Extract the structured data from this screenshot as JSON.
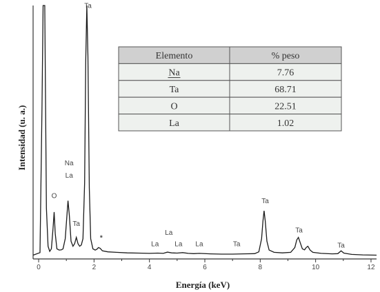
{
  "chart_data": {
    "type": "line",
    "title": "",
    "xlabel": "Energía (keV)",
    "ylabel": "Intensidad (u. a.)",
    "xlim": [
      -0.2,
      12.2
    ],
    "ylim": [
      0,
      100
    ],
    "x_ticks": [
      0,
      2,
      4,
      6,
      8,
      10,
      12
    ],
    "grid": false,
    "spectrum": [
      [
        -0.2,
        1.5
      ],
      [
        0.05,
        2.5
      ],
      [
        0.12,
        60
      ],
      [
        0.16,
        100
      ],
      [
        0.22,
        100
      ],
      [
        0.28,
        20
      ],
      [
        0.34,
        5
      ],
      [
        0.4,
        3
      ],
      [
        0.46,
        4
      ],
      [
        0.52,
        12
      ],
      [
        0.56,
        18.5
      ],
      [
        0.6,
        10
      ],
      [
        0.66,
        4
      ],
      [
        0.74,
        3.5
      ],
      [
        0.82,
        3.6
      ],
      [
        0.88,
        4
      ],
      [
        0.96,
        8
      ],
      [
        1.02,
        17
      ],
      [
        1.06,
        23
      ],
      [
        1.11,
        17
      ],
      [
        1.17,
        7
      ],
      [
        1.24,
        5
      ],
      [
        1.3,
        6
      ],
      [
        1.36,
        8.5
      ],
      [
        1.42,
        6
      ],
      [
        1.48,
        5
      ],
      [
        1.54,
        5.5
      ],
      [
        1.6,
        8
      ],
      [
        1.66,
        30
      ],
      [
        1.7,
        78
      ],
      [
        1.74,
        100
      ],
      [
        1.78,
        80
      ],
      [
        1.83,
        28
      ],
      [
        1.88,
        8
      ],
      [
        1.96,
        4
      ],
      [
        2.04,
        3.5
      ],
      [
        2.1,
        3.8
      ],
      [
        2.16,
        4.5
      ],
      [
        2.22,
        4.2
      ],
      [
        2.3,
        3.2
      ],
      [
        2.5,
        2.8
      ],
      [
        2.8,
        2.6
      ],
      [
        3.2,
        2.4
      ],
      [
        3.6,
        2.3
      ],
      [
        4.0,
        2.2
      ],
      [
        4.3,
        2.3
      ],
      [
        4.5,
        2.2
      ],
      [
        4.65,
        2.7
      ],
      [
        4.8,
        2.4
      ],
      [
        5.0,
        2.3
      ],
      [
        5.2,
        2.5
      ],
      [
        5.4,
        2.2
      ],
      [
        5.6,
        2.1
      ],
      [
        5.8,
        2.2
      ],
      [
        6.2,
        2.0
      ],
      [
        6.6,
        1.9
      ],
      [
        7.0,
        1.9
      ],
      [
        7.4,
        2.0
      ],
      [
        7.8,
        2.1
      ],
      [
        7.95,
        2.8
      ],
      [
        8.05,
        8
      ],
      [
        8.1,
        15
      ],
      [
        8.14,
        19
      ],
      [
        8.18,
        15
      ],
      [
        8.24,
        7
      ],
      [
        8.32,
        3.5
      ],
      [
        8.5,
        2.6
      ],
      [
        8.8,
        2.4
      ],
      [
        9.1,
        2.6
      ],
      [
        9.25,
        4.5
      ],
      [
        9.32,
        7.5
      ],
      [
        9.38,
        8.5
      ],
      [
        9.44,
        6.5
      ],
      [
        9.52,
        4
      ],
      [
        9.6,
        3.6
      ],
      [
        9.66,
        4.5
      ],
      [
        9.72,
        5
      ],
      [
        9.8,
        3.5
      ],
      [
        9.9,
        2.6
      ],
      [
        10.2,
        2.2
      ],
      [
        10.6,
        2.0
      ],
      [
        10.8,
        2.1
      ],
      [
        10.92,
        3.2
      ],
      [
        11.02,
        2.3
      ],
      [
        11.3,
        1.8
      ],
      [
        11.7,
        1.6
      ],
      [
        12.2,
        1.5
      ]
    ],
    "peak_labels": [
      {
        "text": "Ta",
        "x": 1.78,
        "y": 99
      },
      {
        "text": "Na",
        "x": 1.1,
        "y": 37
      },
      {
        "text": "La",
        "x": 1.1,
        "y": 32
      },
      {
        "text": "O",
        "x": 0.56,
        "y": 24
      },
      {
        "text": "Ta",
        "x": 1.36,
        "y": 13
      },
      {
        "text": "*",
        "x": 2.26,
        "y": 7.5
      },
      {
        "text": "La",
        "x": 4.7,
        "y": 9.5
      },
      {
        "text": "La",
        "x": 4.2,
        "y": 5
      },
      {
        "text": "La",
        "x": 5.05,
        "y": 5
      },
      {
        "text": "La",
        "x": 5.8,
        "y": 5
      },
      {
        "text": "Ta",
        "x": 7.15,
        "y": 5
      },
      {
        "text": "Ta",
        "x": 8.18,
        "y": 22
      },
      {
        "text": "Ta",
        "x": 9.4,
        "y": 10.5
      },
      {
        "text": "Ta",
        "x": 10.92,
        "y": 4.5
      }
    ]
  },
  "table": {
    "headers": [
      "Elemento",
      "% peso"
    ],
    "rows": [
      [
        "Na",
        "7.76"
      ],
      [
        "Ta",
        "68.71"
      ],
      [
        "O",
        "22.51"
      ],
      [
        "La",
        "1.02"
      ]
    ]
  }
}
